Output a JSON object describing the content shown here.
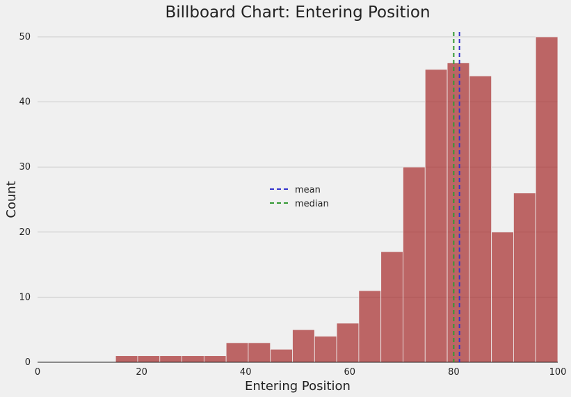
{
  "chart_data": {
    "type": "bar",
    "title": "Billboard Chart: Entering Position",
    "xlabel": "Entering Position",
    "ylabel": "Count",
    "xlim": [
      0,
      100
    ],
    "ylim": [
      0,
      50
    ],
    "xticks": [
      0,
      20,
      40,
      60,
      80,
      100
    ],
    "yticks": [
      0,
      10,
      20,
      30,
      40,
      50
    ],
    "grid": "horizontal",
    "bar_color": "#a52a2a",
    "bins": [
      {
        "start": 15.0,
        "end": 19.25,
        "count": 1
      },
      {
        "start": 19.25,
        "end": 23.5,
        "count": 1
      },
      {
        "start": 23.5,
        "end": 27.75,
        "count": 1
      },
      {
        "start": 27.75,
        "end": 32.0,
        "count": 1
      },
      {
        "start": 32.0,
        "end": 36.25,
        "count": 1
      },
      {
        "start": 36.25,
        "end": 40.5,
        "count": 3
      },
      {
        "start": 40.5,
        "end": 44.75,
        "count": 3
      },
      {
        "start": 44.75,
        "end": 49.0,
        "count": 2
      },
      {
        "start": 49.0,
        "end": 53.25,
        "count": 5
      },
      {
        "start": 53.25,
        "end": 57.5,
        "count": 4
      },
      {
        "start": 57.5,
        "end": 61.75,
        "count": 6
      },
      {
        "start": 61.75,
        "end": 66.0,
        "count": 11
      },
      {
        "start": 66.0,
        "end": 70.25,
        "count": 17
      },
      {
        "start": 70.25,
        "end": 74.5,
        "count": 30
      },
      {
        "start": 74.5,
        "end": 78.75,
        "count": 45
      },
      {
        "start": 78.75,
        "end": 83.0,
        "count": 46
      },
      {
        "start": 83.0,
        "end": 87.25,
        "count": 44
      },
      {
        "start": 87.25,
        "end": 91.5,
        "count": 20
      },
      {
        "start": 91.5,
        "end": 95.75,
        "count": 26
      },
      {
        "start": 95.75,
        "end": 100.0,
        "count": 50
      }
    ],
    "reference_lines": [
      {
        "name": "mean",
        "x": 81.1,
        "color": "#3333cc",
        "style": "dashed"
      },
      {
        "name": "median",
        "x": 80.0,
        "color": "#339933",
        "style": "dashed"
      }
    ],
    "legend": {
      "placement": "center"
    }
  }
}
